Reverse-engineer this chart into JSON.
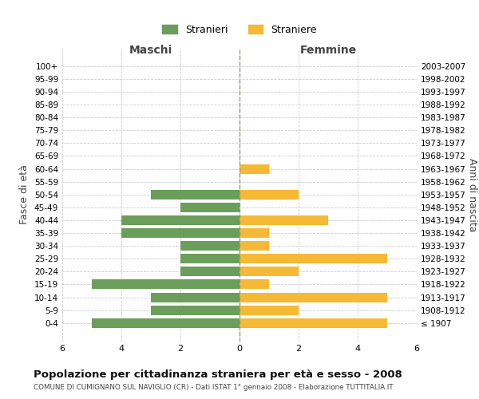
{
  "age_groups": [
    "100+",
    "95-99",
    "90-94",
    "85-89",
    "80-84",
    "75-79",
    "70-74",
    "65-69",
    "60-64",
    "55-59",
    "50-54",
    "45-49",
    "40-44",
    "35-39",
    "30-34",
    "25-29",
    "20-24",
    "15-19",
    "10-14",
    "5-9",
    "0-4"
  ],
  "birth_years": [
    "≤ 1907",
    "1908-1912",
    "1913-1917",
    "1918-1922",
    "1923-1927",
    "1928-1932",
    "1933-1937",
    "1938-1942",
    "1943-1947",
    "1948-1952",
    "1953-1957",
    "1958-1962",
    "1963-1967",
    "1968-1972",
    "1973-1977",
    "1978-1982",
    "1983-1987",
    "1988-1992",
    "1993-1997",
    "1998-2002",
    "2003-2007"
  ],
  "maschi": [
    0,
    0,
    0,
    0,
    0,
    0,
    0,
    0,
    0,
    0,
    3,
    2,
    4,
    4,
    2,
    2,
    2,
    5,
    3,
    3,
    5
  ],
  "femmine": [
    0,
    0,
    0,
    0,
    0,
    0,
    0,
    0,
    1,
    0,
    2,
    0,
    3,
    1,
    1,
    5,
    2,
    1,
    5,
    2,
    5
  ],
  "color_maschi": "#6a9e5a",
  "color_femmine": "#f5b935",
  "title": "Popolazione per cittadinanza straniera per età e sesso - 2008",
  "subtitle": "COMUNE DI CUMIGNANO SUL NAVIGLIO (CR) - Dati ISTAT 1° gennaio 2008 - Elaborazione TUTTITALIA.IT",
  "legend_maschi": "Stranieri",
  "legend_femmine": "Straniere",
  "xlabel_left": "Maschi",
  "xlabel_right": "Femmine",
  "ylabel_left": "Fasce di età",
  "ylabel_right": "Anni di nascita",
  "xlim": 6,
  "background_color": "#ffffff",
  "grid_color": "#cccccc"
}
